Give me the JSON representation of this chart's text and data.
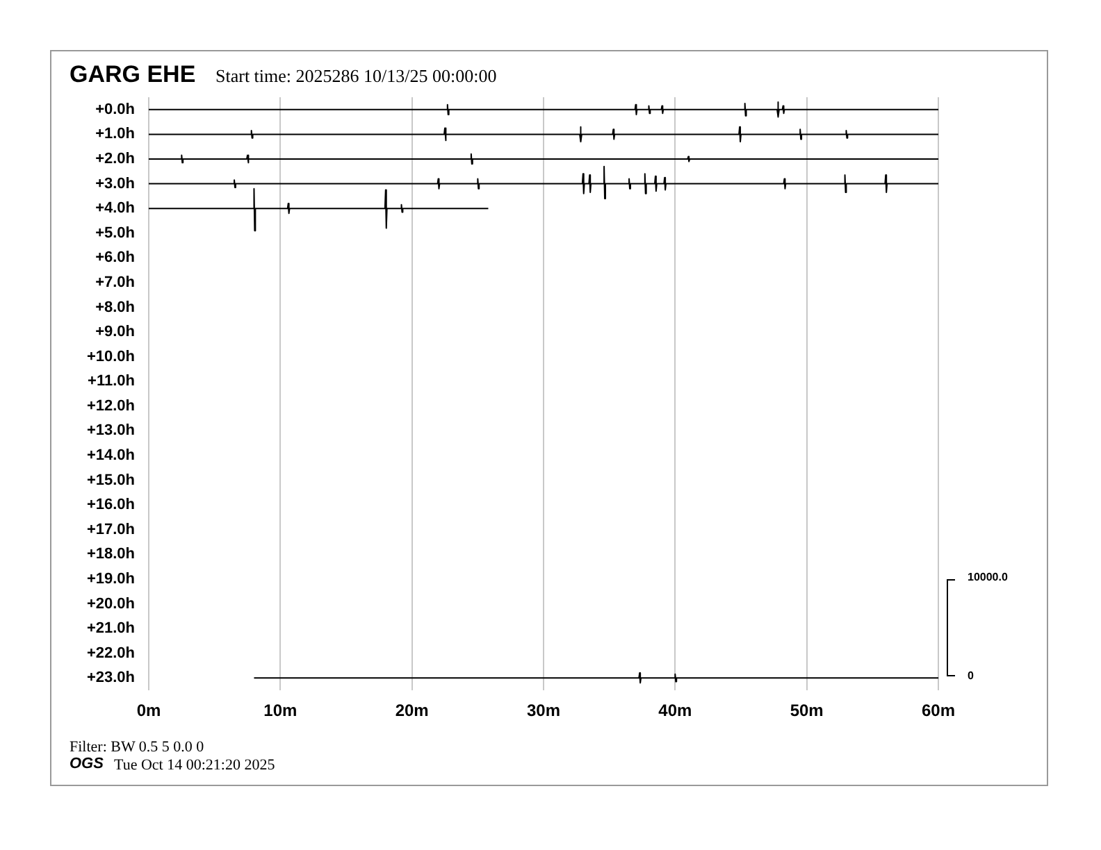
{
  "chart_data": {
    "type": "line",
    "title": "GARG EHE",
    "subtitle": "Start time: 2025286 10/13/25 00:00:00",
    "annotations": [
      "Filter: BW 0.5 5 0.0 0",
      "OGS",
      "Tue Oct 14 00:21:20 2025",
      "10000.0",
      "0"
    ],
    "xlim": [
      0,
      60
    ],
    "xticks": [
      {
        "value": 0,
        "label": "0m"
      },
      {
        "value": 10,
        "label": "10m"
      },
      {
        "value": 20,
        "label": "20m"
      },
      {
        "value": 30,
        "label": "30m"
      },
      {
        "value": 40,
        "label": "40m"
      },
      {
        "value": 50,
        "label": "50m"
      },
      {
        "value": 60,
        "label": "60m"
      }
    ],
    "ylim": [
      23.5,
      -0.5
    ],
    "yticks": [
      {
        "value": 0,
        "label": "+0.0h"
      },
      {
        "value": 1,
        "label": "+1.0h"
      },
      {
        "value": 2,
        "label": "+2.0h"
      },
      {
        "value": 3,
        "label": "+3.0h"
      },
      {
        "value": 4,
        "label": "+4.0h"
      },
      {
        "value": 5,
        "label": "+5.0h"
      },
      {
        "value": 6,
        "label": "+6.0h"
      },
      {
        "value": 7,
        "label": "+7.0h"
      },
      {
        "value": 8,
        "label": "+8.0h"
      },
      {
        "value": 9,
        "label": "+9.0h"
      },
      {
        "value": 10,
        "label": "+10.0h"
      },
      {
        "value": 11,
        "label": "+11.0h"
      },
      {
        "value": 12,
        "label": "+12.0h"
      },
      {
        "value": 13,
        "label": "+13.0h"
      },
      {
        "value": 14,
        "label": "+14.0h"
      },
      {
        "value": 15,
        "label": "+15.0h"
      },
      {
        "value": 16,
        "label": "+16.0h"
      },
      {
        "value": 17,
        "label": "+17.0h"
      },
      {
        "value": 18,
        "label": "+18.0h"
      },
      {
        "value": 19,
        "label": "+19.0h"
      },
      {
        "value": 20,
        "label": "+20.0h"
      },
      {
        "value": 21,
        "label": "+21.0h"
      },
      {
        "value": 22,
        "label": "+22.0h"
      },
      {
        "value": 23,
        "label": "+23.0h"
      }
    ],
    "grid": "x",
    "legend": false,
    "marker": "none",
    "line_style": "solid",
    "series": [
      {
        "color": "#000000",
        "x": [
          0,
          22.65,
          22.7,
          22.75,
          22.8,
          36.95,
          37,
          37.05,
          37.1,
          37.95,
          38,
          38.05,
          38.1,
          38.95,
          39,
          39.05,
          39.1,
          45.25,
          45.3,
          45.35,
          45.4,
          47.75,
          47.8,
          47.85,
          47.9,
          48.15,
          48.2,
          48.25,
          48.3,
          60
        ],
        "values": [
          0,
          0,
          -0.2,
          0.2,
          0,
          0,
          -0.2,
          0.2,
          0,
          0,
          -0.15,
          0.15,
          0,
          0,
          -0.15,
          0.15,
          0,
          0,
          -0.25,
          0.25,
          0,
          0,
          -0.3,
          0.3,
          0,
          0,
          -0.15,
          0.15,
          0,
          0
        ]
      },
      {
        "color": "#000000",
        "x": [
          0,
          7.75,
          7.8,
          7.85,
          7.9,
          22.45,
          22.5,
          22.55,
          22.6,
          32.75,
          32.8,
          32.85,
          32.9,
          35.25,
          35.3,
          35.35,
          35.4,
          44.85,
          44.9,
          44.95,
          45,
          49.45,
          49.5,
          49.55,
          49.6,
          52.95,
          53,
          53.05,
          53.1,
          60
        ],
        "values": [
          1,
          1,
          0.85,
          1.15,
          1,
          1,
          0.75,
          1.25,
          1,
          1,
          0.7,
          1.3,
          1,
          1,
          0.8,
          1.2,
          1,
          1,
          0.7,
          1.3,
          1,
          1,
          0.8,
          1.2,
          1,
          1,
          0.85,
          1.15,
          1,
          1
        ]
      },
      {
        "color": "#000000",
        "x": [
          0,
          2.45,
          2.5,
          2.55,
          2.6,
          7.45,
          7.5,
          7.55,
          7.6,
          24.45,
          24.5,
          24.55,
          24.6,
          40.95,
          41,
          41.05,
          41.1,
          60
        ],
        "values": [
          2,
          2,
          1.85,
          2.15,
          2,
          2,
          1.85,
          2.15,
          2,
          2,
          1.8,
          2.2,
          2,
          2,
          1.9,
          2.1,
          2,
          2
        ]
      },
      {
        "color": "#000000",
        "x": [
          0,
          6.45,
          6.5,
          6.55,
          6.6,
          21.95,
          22,
          22.05,
          22.1,
          24.95,
          25,
          25.05,
          25.1,
          32.95,
          33,
          33.05,
          33.1,
          33.45,
          33.5,
          33.55,
          33.6,
          34.55,
          34.6,
          34.65,
          34.7,
          36.45,
          36.5,
          36.55,
          36.6,
          37.65,
          37.7,
          37.75,
          37.8,
          38.45,
          38.5,
          38.55,
          38.6,
          39.15,
          39.2,
          39.25,
          39.3,
          48.25,
          48.3,
          48.35,
          48.4,
          52.85,
          52.9,
          52.95,
          53,
          55.95,
          56,
          56.05,
          56.1,
          60
        ],
        "values": [
          3,
          3,
          2.85,
          3.15,
          3,
          3,
          2.8,
          3.2,
          3,
          3,
          2.8,
          3.2,
          3,
          3,
          2.6,
          3.4,
          3,
          3,
          2.65,
          3.35,
          3,
          3,
          2.3,
          3.6,
          3,
          3,
          2.8,
          3.2,
          3,
          3,
          2.6,
          3.4,
          3,
          3,
          2.7,
          3.3,
          3,
          3,
          2.75,
          3.25,
          3,
          3,
          2.8,
          3.2,
          3,
          3,
          2.65,
          3.35,
          3,
          3,
          2.65,
          3.35,
          3,
          3
        ]
      },
      {
        "color": "#000000",
        "x": [
          0,
          7.95,
          8,
          8.05,
          8.1,
          10.55,
          10.6,
          10.65,
          10.7,
          17.95,
          18,
          18.05,
          18.1,
          19.15,
          19.2,
          19.25,
          19.3,
          25.8
        ],
        "values": [
          4,
          4,
          3.2,
          4.9,
          4,
          4,
          3.8,
          4.2,
          4,
          4,
          3.25,
          4.8,
          4,
          4,
          3.85,
          4.15,
          4,
          4
        ]
      },
      {
        "color": "#000000",
        "x": [
          8,
          37.25,
          37.3,
          37.35,
          37.4,
          39.95,
          40,
          40.05,
          40.1,
          60
        ],
        "values": [
          23,
          23,
          22.8,
          23.2,
          23,
          23,
          22.85,
          23.15,
          23,
          23
        ]
      }
    ]
  }
}
